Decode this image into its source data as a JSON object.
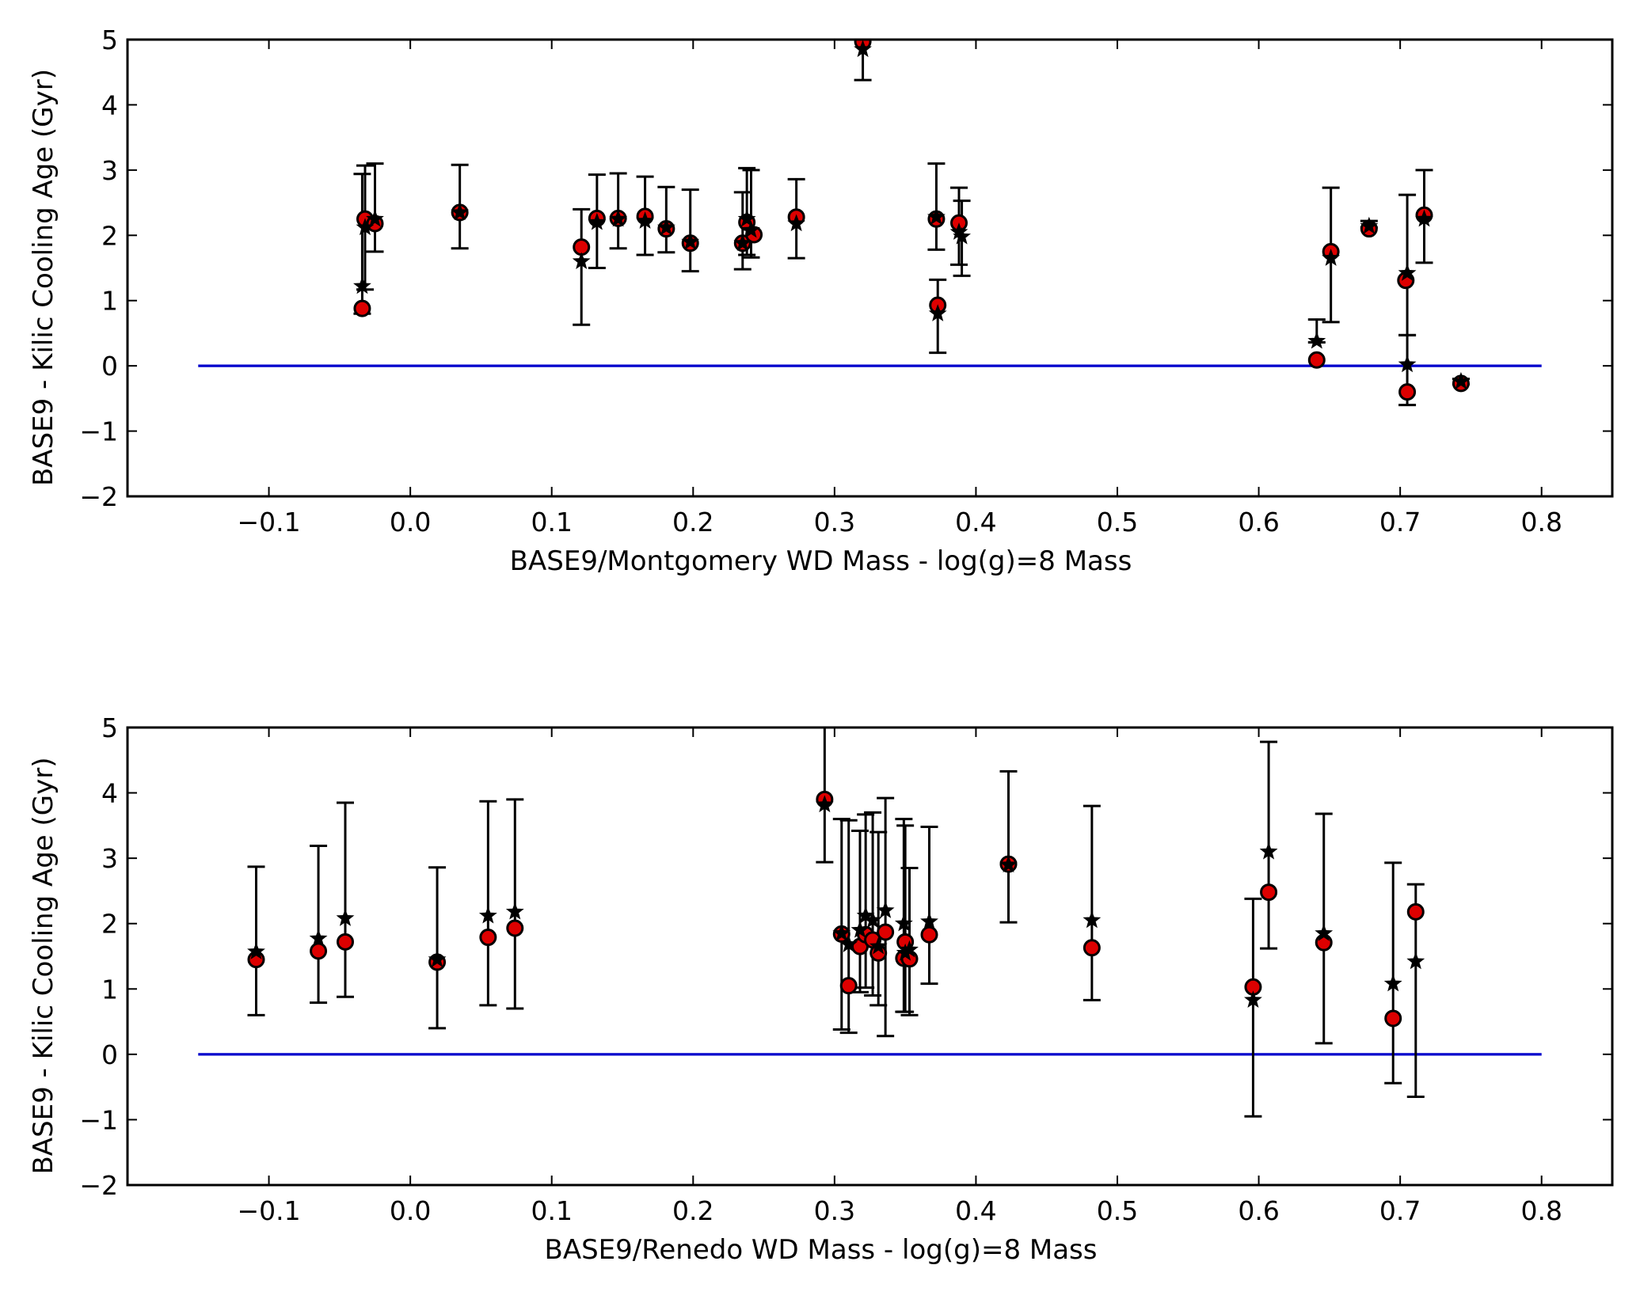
{
  "colors": {
    "marker_fill": "#dd0000",
    "marker_edge": "#000000",
    "zero_line": "#0000cc",
    "axes": "#000000",
    "background": "#ffffff"
  },
  "chart_data": [
    {
      "type": "scatter",
      "xlabel": "BASE9/Montgomery WD Mass - log(g)=8 Mass",
      "ylabel": "BASE9 - Kilic Cooling Age (Gyr)",
      "xlim": [
        -0.2,
        0.85
      ],
      "ylim": [
        -2,
        5
      ],
      "xticks": [
        -0.1,
        0.0,
        0.1,
        0.2,
        0.3,
        0.4,
        0.5,
        0.6,
        0.7,
        0.8
      ],
      "xtick_labels": [
        "−0.1",
        "0.0",
        "0.1",
        "0.2",
        "0.3",
        "0.4",
        "0.5",
        "0.6",
        "0.7",
        "0.8"
      ],
      "yticks": [
        -2,
        -1,
        0,
        1,
        2,
        3,
        4,
        5
      ],
      "ytick_labels": [
        "−2",
        "−1",
        "0",
        "1",
        "2",
        "3",
        "4",
        "5"
      ],
      "grid": false,
      "zero_line": {
        "y": 0,
        "x_range": [
          -0.15,
          0.8
        ]
      },
      "circles": [
        {
          "x": -0.034,
          "y": 0.88
        },
        {
          "x": -0.032,
          "y": 2.25
        },
        {
          "x": -0.025,
          "y": 2.18
        },
        {
          "x": 0.035,
          "y": 2.35
        },
        {
          "x": 0.121,
          "y": 1.82
        },
        {
          "x": 0.132,
          "y": 2.26
        },
        {
          "x": 0.147,
          "y": 2.26
        },
        {
          "x": 0.166,
          "y": 2.29
        },
        {
          "x": 0.181,
          "y": 2.1
        },
        {
          "x": 0.198,
          "y": 1.88
        },
        {
          "x": 0.235,
          "y": 1.88
        },
        {
          "x": 0.238,
          "y": 2.2
        },
        {
          "x": 0.243,
          "y": 2.01
        },
        {
          "x": 0.273,
          "y": 2.28
        },
        {
          "x": 0.32,
          "y": 4.97
        },
        {
          "x": 0.372,
          "y": 2.25
        },
        {
          "x": 0.373,
          "y": 0.93
        },
        {
          "x": 0.388,
          "y": 2.19
        },
        {
          "x": 0.641,
          "y": 0.09
        },
        {
          "x": 0.651,
          "y": 1.75
        },
        {
          "x": 0.678,
          "y": 2.1
        },
        {
          "x": 0.704,
          "y": 1.31
        },
        {
          "x": 0.705,
          "y": -0.4
        },
        {
          "x": 0.717,
          "y": 2.31
        },
        {
          "x": 0.743,
          "y": -0.27
        }
      ],
      "stars": [
        {
          "x": -0.034,
          "y": 1.22,
          "yerr_low": 0.42,
          "yerr_high": 1.72
        },
        {
          "x": -0.032,
          "y": 2.12,
          "yerr_low": 0.95,
          "yerr_high": 0.95
        },
        {
          "x": -0.025,
          "y": 2.25,
          "yerr_low": 0.5,
          "yerr_high": 0.85
        },
        {
          "x": 0.035,
          "y": 2.35,
          "yerr_low": 0.55,
          "yerr_high": 0.73
        },
        {
          "x": 0.121,
          "y": 1.6,
          "yerr_low": 0.97,
          "yerr_high": 0.8
        },
        {
          "x": 0.132,
          "y": 2.2,
          "yerr_low": 0.7,
          "yerr_high": 0.73
        },
        {
          "x": 0.147,
          "y": 2.25,
          "yerr_low": 0.45,
          "yerr_high": 0.7
        },
        {
          "x": 0.166,
          "y": 2.22,
          "yerr_low": 0.52,
          "yerr_high": 0.68
        },
        {
          "x": 0.181,
          "y": 2.12,
          "yerr_low": 0.38,
          "yerr_high": 0.62
        },
        {
          "x": 0.198,
          "y": 1.9,
          "yerr_low": 0.45,
          "yerr_high": 0.8
        },
        {
          "x": 0.235,
          "y": 1.88,
          "yerr_low": 0.4,
          "yerr_high": 0.78
        },
        {
          "x": 0.238,
          "y": 2.25,
          "yerr_low": 0.55,
          "yerr_high": 0.78
        },
        {
          "x": 0.241,
          "y": 2.08,
          "yerr_low": 0.42,
          "yerr_high": 0.92
        },
        {
          "x": 0.273,
          "y": 2.18,
          "yerr_low": 0.53,
          "yerr_high": 0.68
        },
        {
          "x": 0.32,
          "y": 4.85,
          "yerr_low": 0.47,
          "yerr_high": 0.15
        },
        {
          "x": 0.372,
          "y": 2.28,
          "yerr_low": 0.5,
          "yerr_high": 0.82
        },
        {
          "x": 0.373,
          "y": 0.8,
          "yerr_low": 0.6,
          "yerr_high": 0.52
        },
        {
          "x": 0.388,
          "y": 2.05,
          "yerr_low": 0.5,
          "yerr_high": 0.68
        },
        {
          "x": 0.39,
          "y": 1.98,
          "yerr_low": 0.6,
          "yerr_high": 0.55
        },
        {
          "x": 0.641,
          "y": 0.38,
          "yerr_low": 0.02,
          "yerr_high": 0.33
        },
        {
          "x": 0.651,
          "y": 1.65,
          "yerr_low": 0.98,
          "yerr_high": 1.08
        },
        {
          "x": 0.678,
          "y": 2.14,
          "yerr_low": 0.02,
          "yerr_high": 0.08
        },
        {
          "x": 0.705,
          "y": 1.42,
          "yerr_low": 0.95,
          "yerr_high": 1.2
        },
        {
          "x": 0.705,
          "y": 0.02,
          "yerr_low": 0.62,
          "yerr_high": 0.45
        },
        {
          "x": 0.717,
          "y": 2.25,
          "yerr_low": 0.67,
          "yerr_high": 0.75
        },
        {
          "x": 0.743,
          "y": -0.24,
          "yerr_low": 0.04,
          "yerr_high": 0.04
        }
      ]
    },
    {
      "type": "scatter",
      "xlabel": "BASE9/Renedo WD Mass - log(g)=8 Mass",
      "ylabel": "BASE9 - Kilic Cooling Age (Gyr)",
      "xlim": [
        -0.2,
        0.85
      ],
      "ylim": [
        -2,
        5
      ],
      "xticks": [
        -0.1,
        0.0,
        0.1,
        0.2,
        0.3,
        0.4,
        0.5,
        0.6,
        0.7,
        0.8
      ],
      "xtick_labels": [
        "−0.1",
        "0.0",
        "0.1",
        "0.2",
        "0.3",
        "0.4",
        "0.5",
        "0.6",
        "0.7",
        "0.8"
      ],
      "yticks": [
        -2,
        -1,
        0,
        1,
        2,
        3,
        4,
        5
      ],
      "ytick_labels": [
        "−2",
        "−1",
        "0",
        "1",
        "2",
        "3",
        "4",
        "5"
      ],
      "grid": false,
      "zero_line": {
        "y": 0,
        "x_range": [
          -0.15,
          0.8
        ]
      },
      "circles": [
        {
          "x": -0.109,
          "y": 1.45
        },
        {
          "x": -0.065,
          "y": 1.58
        },
        {
          "x": -0.046,
          "y": 1.72
        },
        {
          "x": 0.019,
          "y": 1.41
        },
        {
          "x": 0.055,
          "y": 1.79
        },
        {
          "x": 0.074,
          "y": 1.93
        },
        {
          "x": 0.293,
          "y": 3.9
        },
        {
          "x": 0.305,
          "y": 1.84
        },
        {
          "x": 0.31,
          "y": 1.05
        },
        {
          "x": 0.318,
          "y": 1.65
        },
        {
          "x": 0.322,
          "y": 1.83
        },
        {
          "x": 0.327,
          "y": 1.75
        },
        {
          "x": 0.331,
          "y": 1.55
        },
        {
          "x": 0.336,
          "y": 1.87
        },
        {
          "x": 0.349,
          "y": 1.47
        },
        {
          "x": 0.35,
          "y": 1.72
        },
        {
          "x": 0.353,
          "y": 1.46
        },
        {
          "x": 0.367,
          "y": 1.83
        },
        {
          "x": 0.423,
          "y": 2.91
        },
        {
          "x": 0.482,
          "y": 1.63
        },
        {
          "x": 0.596,
          "y": 1.03
        },
        {
          "x": 0.607,
          "y": 2.48
        },
        {
          "x": 0.646,
          "y": 1.71
        },
        {
          "x": 0.695,
          "y": 0.55
        },
        {
          "x": 0.711,
          "y": 2.18
        }
      ],
      "stars": [
        {
          "x": -0.109,
          "y": 1.57,
          "yerr_low": 0.97,
          "yerr_high": 1.3
        },
        {
          "x": -0.065,
          "y": 1.77,
          "yerr_low": 0.98,
          "yerr_high": 1.42
        },
        {
          "x": -0.046,
          "y": 2.08,
          "yerr_low": 1.2,
          "yerr_high": 1.77
        },
        {
          "x": 0.019,
          "y": 1.45,
          "yerr_low": 1.05,
          "yerr_high": 1.41
        },
        {
          "x": 0.055,
          "y": 2.12,
          "yerr_low": 1.37,
          "yerr_high": 1.75
        },
        {
          "x": 0.074,
          "y": 2.18,
          "yerr_low": 1.48,
          "yerr_high": 1.72
        },
        {
          "x": 0.293,
          "y": 3.82,
          "yerr_low": 0.88,
          "yerr_high": 1.18
        },
        {
          "x": 0.305,
          "y": 1.85,
          "yerr_low": 1.47,
          "yerr_high": 1.75
        },
        {
          "x": 0.31,
          "y": 1.68,
          "yerr_low": 1.35,
          "yerr_high": 1.9
        },
        {
          "x": 0.318,
          "y": 1.9,
          "yerr_low": 0.95,
          "yerr_high": 1.52
        },
        {
          "x": 0.322,
          "y": 2.12,
          "yerr_low": 1.1,
          "yerr_high": 1.55
        },
        {
          "x": 0.327,
          "y": 2.05,
          "yerr_low": 1.15,
          "yerr_high": 1.65
        },
        {
          "x": 0.331,
          "y": 1.65,
          "yerr_low": 0.9,
          "yerr_high": 1.75
        },
        {
          "x": 0.336,
          "y": 2.2,
          "yerr_low": 1.92,
          "yerr_high": 1.72
        },
        {
          "x": 0.349,
          "y": 2.0,
          "yerr_low": 1.35,
          "yerr_high": 1.6
        },
        {
          "x": 0.35,
          "y": 1.55,
          "yerr_low": 0.9,
          "yerr_high": 1.95
        },
        {
          "x": 0.353,
          "y": 1.6,
          "yerr_low": 1.0,
          "yerr_high": 1.25
        },
        {
          "x": 0.367,
          "y": 2.03,
          "yerr_low": 0.95,
          "yerr_high": 1.45
        },
        {
          "x": 0.423,
          "y": 2.9,
          "yerr_low": 0.88,
          "yerr_high": 1.43
        },
        {
          "x": 0.482,
          "y": 2.05,
          "yerr_low": 1.22,
          "yerr_high": 1.75
        },
        {
          "x": 0.596,
          "y": 0.83,
          "yerr_low": 1.78,
          "yerr_high": 1.55
        },
        {
          "x": 0.607,
          "y": 3.1,
          "yerr_low": 1.48,
          "yerr_high": 1.68
        },
        {
          "x": 0.646,
          "y": 1.85,
          "yerr_low": 1.68,
          "yerr_high": 1.83
        },
        {
          "x": 0.695,
          "y": 1.08,
          "yerr_low": 1.52,
          "yerr_high": 1.85
        },
        {
          "x": 0.711,
          "y": 1.42,
          "yerr_low": 2.07,
          "yerr_high": 1.18
        }
      ]
    }
  ]
}
